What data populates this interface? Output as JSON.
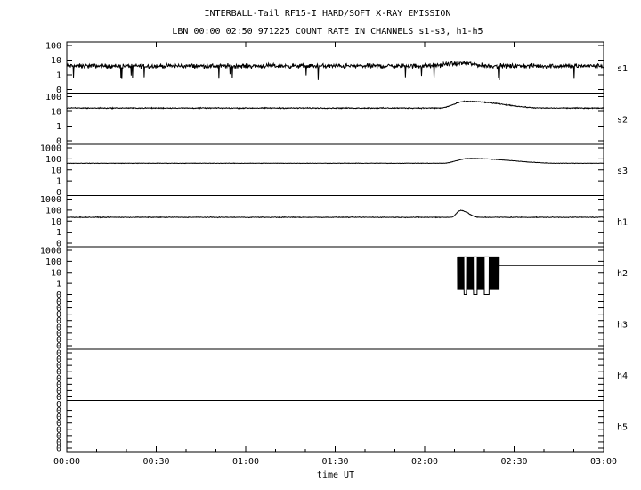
{
  "chart_data": {
    "type": "line",
    "title": "INTERBALL-Tail RF15-I HARD/SOFT X-RAY EMISSION",
    "subtitle": "LBN 00:00 02:50 971225  COUNT RATE IN CHANNELS s1-s3, h1-h5",
    "xlabel": "time UT",
    "x_ticks": [
      "00:00",
      "00:30",
      "01:00",
      "01:30",
      "02:00",
      "02:30",
      "03:00"
    ],
    "x_range_minutes": [
      0,
      180
    ],
    "y_scale": "log",
    "grid": false,
    "panels": [
      {
        "name": "s1",
        "y_ticks": [
          "100",
          "10",
          "1",
          "0"
        ],
        "ylim": [
          0.1,
          100
        ],
        "baseline": 4,
        "noise_decades": 0.22,
        "features": [
          {
            "start_min": 120,
            "end_min": 142,
            "peak_min": 133,
            "peak": 6
          }
        ]
      },
      {
        "name": "s2",
        "y_ticks": [
          "100",
          "10",
          "1",
          "0"
        ],
        "ylim": [
          0.1,
          100
        ],
        "baseline": 17,
        "noise_decades": 0.05,
        "features": [
          {
            "start_min": 125,
            "end_min": 160,
            "peak_min": 134,
            "peak": 48
          }
        ]
      },
      {
        "name": "s3",
        "y_ticks": [
          "1000",
          "100",
          "10",
          "1",
          "0"
        ],
        "ylim": [
          0.1,
          1000
        ],
        "baseline": 40,
        "noise_decades": 0.03,
        "features": [
          {
            "start_min": 126,
            "end_min": 165,
            "peak_min": 135,
            "peak": 110
          }
        ]
      },
      {
        "name": "h1",
        "y_ticks": [
          "1000",
          "100",
          "10",
          "1",
          "0"
        ],
        "ylim": [
          0.1,
          1000
        ],
        "baseline": 22,
        "noise_decades": 0.05,
        "features": [
          {
            "start_min": 129,
            "end_min": 138,
            "peak_min": 132,
            "peak": 95
          }
        ]
      },
      {
        "name": "h2",
        "y_ticks": [
          "1000",
          "100",
          "10",
          "1",
          "0"
        ],
        "ylim": [
          0.1,
          1000
        ],
        "baseline": null,
        "burst_start_min": 131,
        "burst_end_min": 145,
        "burst_value": 250,
        "gap_value": 0.1,
        "plateau_value": 40,
        "plateau_end_min": 180
      },
      {
        "name": "h3",
        "y_ticks": [
          "0",
          "0",
          "0",
          "0",
          "0",
          "0",
          "0",
          "0"
        ],
        "ylim": null,
        "baseline": null
      },
      {
        "name": "h4",
        "y_ticks": [
          "0",
          "0",
          "0",
          "0",
          "0",
          "0",
          "0",
          "0"
        ],
        "ylim": null,
        "baseline": null
      },
      {
        "name": "h5",
        "y_ticks": [
          "0",
          "0",
          "0",
          "0",
          "0",
          "0",
          "0",
          "0"
        ],
        "ylim": null,
        "baseline": null
      }
    ]
  }
}
